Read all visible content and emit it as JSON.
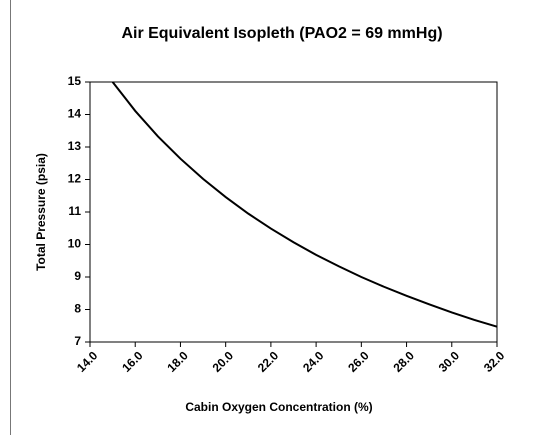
{
  "chart_data": {
    "type": "line",
    "title": "Air Equivalent Isopleth (PAO2 = 69 mmHg)",
    "x_label": "Cabin Oxygen Concentration (%)",
    "y_label": "Total Pressure (psia)",
    "x": [
      15,
      16,
      17,
      18,
      19,
      20,
      21,
      22,
      23,
      24,
      25,
      26,
      27,
      28,
      29,
      30,
      31,
      32
    ],
    "series": [
      {
        "name": "Isopleth",
        "color": "#000000",
        "values": [
          15.0,
          14.11,
          13.33,
          12.64,
          12.02,
          11.46,
          10.95,
          10.49,
          10.07,
          9.68,
          9.33,
          9.0,
          8.7,
          8.42,
          8.16,
          7.91,
          7.68,
          7.47
        ]
      }
    ],
    "xlim": [
      14,
      32
    ],
    "xticks": [
      {
        "value": 14,
        "label": "14.0"
      },
      {
        "value": 16,
        "label": "16.0"
      },
      {
        "value": 18,
        "label": "18.0"
      },
      {
        "value": 20,
        "label": "20.0"
      },
      {
        "value": 22,
        "label": "22.0"
      },
      {
        "value": 24,
        "label": "24.0"
      },
      {
        "value": 26,
        "label": "26.0"
      },
      {
        "value": 28,
        "label": "28.0"
      },
      {
        "value": 30,
        "label": "30.0"
      },
      {
        "value": 32,
        "label": "32.0"
      }
    ],
    "ylim": [
      7,
      15
    ],
    "yticks": [
      7,
      8,
      9,
      10,
      11,
      12,
      13,
      14,
      15
    ],
    "grid": false
  }
}
